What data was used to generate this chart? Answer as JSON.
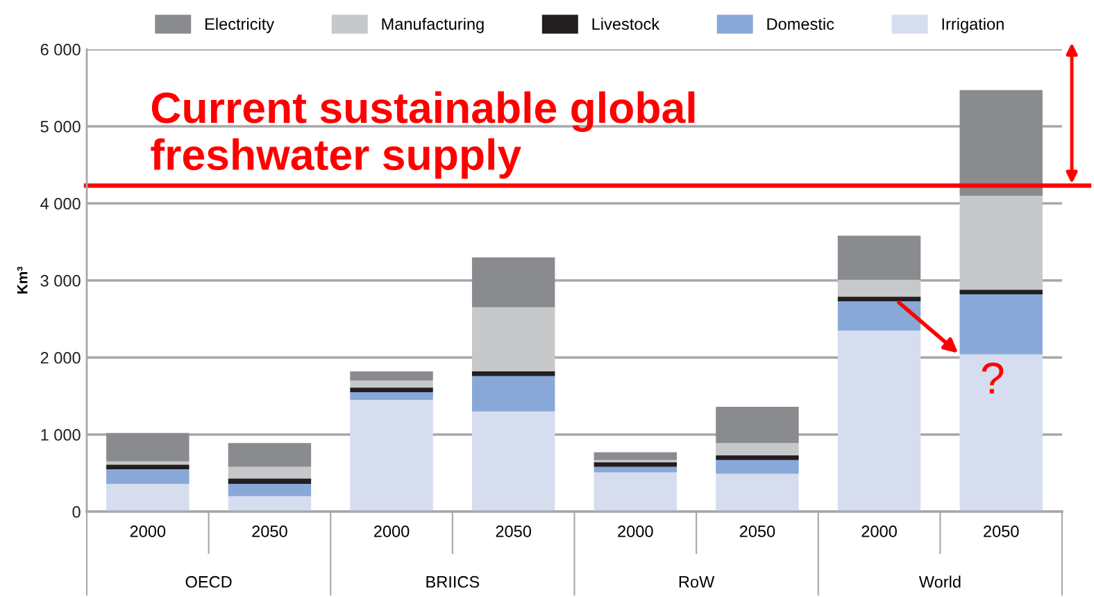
{
  "chart_data": {
    "type": "bar",
    "stacked": true,
    "ylabel": "Km³",
    "categories": [
      "2000",
      "2050",
      "2000",
      "2050",
      "2000",
      "2050",
      "2000",
      "2050"
    ],
    "series": [
      {
        "name": "Irrigation",
        "color": "#d5ddef",
        "values": [
          360,
          200,
          1450,
          1300,
          510,
          490,
          2350,
          2040
        ]
      },
      {
        "name": "Domestic",
        "color": "#88a8d8",
        "values": [
          190,
          160,
          100,
          460,
          70,
          180,
          380,
          780
        ]
      },
      {
        "name": "Livestock",
        "color": "#231f20",
        "values": [
          60,
          70,
          60,
          60,
          60,
          60,
          60,
          60
        ]
      },
      {
        "name": "Manufacturing",
        "color": "#c7c8ca",
        "values": [
          40,
          150,
          90,
          830,
          30,
          160,
          220,
          1220
        ]
      },
      {
        "name": "Electricity",
        "color": "#8a8b8f",
        "values": [
          370,
          310,
          120,
          650,
          100,
          470,
          570,
          1370
        ]
      }
    ],
    "ylim": [
      0,
      6000
    ],
    "yticks": [
      0,
      {
        "value": 1000,
        "label": "1 000"
      },
      {
        "value": 2000,
        "label": "2 000"
      },
      {
        "value": 3000,
        "label": "3 000"
      },
      {
        "value": 4000,
        "label": "4 000"
      },
      {
        "value": 5000,
        "label": "5 000"
      },
      {
        "value": 6000,
        "label": "6 000"
      }
    ],
    "grid": "y",
    "legend": "top",
    "ref_lines": [
      {
        "axis": "y",
        "value": 4230,
        "label": "Current sustainable global\nfreshwater supply",
        "color": "#ff0000",
        "line_style": "solid"
      }
    ],
    "annotations": [
      "OECD",
      "BRIICS",
      "RoW",
      "World",
      {
        "text": "?",
        "y": 2040
      }
    ]
  }
}
